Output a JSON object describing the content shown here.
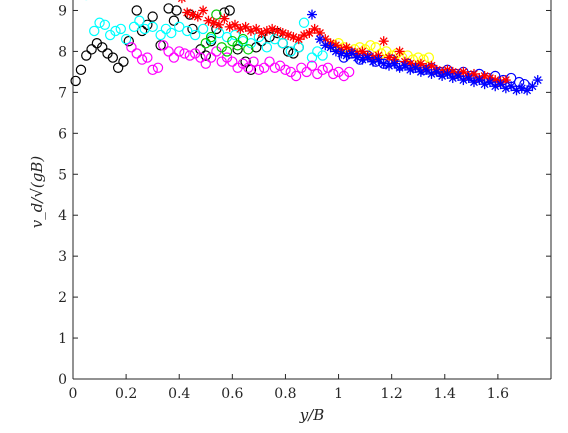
{
  "chart_data": {
    "type": "scatter",
    "title": "",
    "xlabel": "y/B",
    "ylabel": "v_d/√(gB)",
    "xlim": [
      0,
      1.8
    ],
    "ylim": [
      0,
      9.5
    ],
    "x_ticks": [
      "0",
      "0.2",
      "0.4",
      "0.6",
      "0.8",
      "1",
      "1.2",
      "1.4",
      "1.6"
    ],
    "y_ticks": [
      "0",
      "1",
      "2",
      "3",
      "4",
      "5",
      "6",
      "7",
      "8",
      "9"
    ],
    "grid": false,
    "legend": "none",
    "series": [
      {
        "color": "#000000",
        "marker": "circle",
        "points": [
          [
            0.01,
            7.28
          ],
          [
            0.03,
            7.55
          ],
          [
            0.05,
            7.9
          ],
          [
            0.07,
            8.05
          ],
          [
            0.09,
            8.2
          ],
          [
            0.11,
            8.1
          ],
          [
            0.13,
            7.95
          ],
          [
            0.15,
            7.85
          ],
          [
            0.17,
            7.6
          ],
          [
            0.19,
            7.75
          ],
          [
            0.21,
            8.25
          ],
          [
            0.24,
            9.0
          ],
          [
            0.26,
            8.5
          ],
          [
            0.28,
            8.65
          ],
          [
            0.3,
            8.85
          ],
          [
            0.33,
            8.15
          ],
          [
            0.36,
            9.05
          ],
          [
            0.38,
            8.75
          ],
          [
            0.39,
            9.0
          ],
          [
            0.42,
            9.38
          ],
          [
            0.44,
            8.9
          ],
          [
            0.45,
            8.55
          ],
          [
            0.48,
            8.05
          ],
          [
            0.5,
            7.9
          ],
          [
            0.52,
            8.25
          ],
          [
            0.54,
            8.55
          ],
          [
            0.57,
            8.95
          ],
          [
            0.59,
            9.0
          ],
          [
            0.62,
            8.05
          ],
          [
            0.65,
            7.75
          ],
          [
            0.67,
            7.55
          ],
          [
            0.69,
            8.1
          ],
          [
            0.71,
            8.25
          ],
          [
            0.74,
            8.35
          ],
          [
            0.77,
            8.45
          ],
          [
            0.79,
            8.2
          ],
          [
            0.81,
            8.0
          ],
          [
            0.83,
            7.95
          ],
          [
            0.85,
            8.1
          ]
        ]
      },
      {
        "color": "#00ffff",
        "marker": "circle",
        "points": [
          [
            0.05,
            9.38
          ],
          [
            0.08,
            8.5
          ],
          [
            0.1,
            8.7
          ],
          [
            0.12,
            8.65
          ],
          [
            0.14,
            8.4
          ],
          [
            0.16,
            8.5
          ],
          [
            0.18,
            8.55
          ],
          [
            0.2,
            8.3
          ],
          [
            0.23,
            8.6
          ],
          [
            0.25,
            8.75
          ],
          [
            0.27,
            8.55
          ],
          [
            0.3,
            8.6
          ],
          [
            0.33,
            8.4
          ],
          [
            0.35,
            8.55
          ],
          [
            0.37,
            8.45
          ],
          [
            0.4,
            8.6
          ],
          [
            0.43,
            8.5
          ],
          [
            0.46,
            8.4
          ],
          [
            0.49,
            8.55
          ],
          [
            0.52,
            8.3
          ],
          [
            0.55,
            8.45
          ],
          [
            0.58,
            8.35
          ],
          [
            0.61,
            8.4
          ],
          [
            0.64,
            8.25
          ],
          [
            0.67,
            8.2
          ],
          [
            0.7,
            8.35
          ],
          [
            0.73,
            8.1
          ],
          [
            0.76,
            8.3
          ],
          [
            0.79,
            8.2
          ],
          [
            0.82,
            8.0
          ],
          [
            0.85,
            8.1
          ],
          [
            0.87,
            8.7
          ],
          [
            0.9,
            7.85
          ],
          [
            0.92,
            8.0
          ],
          [
            0.94,
            7.9
          ]
        ]
      },
      {
        "color": "#ff00ff",
        "marker": "circle",
        "points": [
          [
            0.22,
            8.1
          ],
          [
            0.24,
            7.95
          ],
          [
            0.26,
            7.8
          ],
          [
            0.28,
            7.85
          ],
          [
            0.3,
            7.55
          ],
          [
            0.32,
            7.6
          ],
          [
            0.34,
            8.15
          ],
          [
            0.36,
            8.0
          ],
          [
            0.38,
            7.85
          ],
          [
            0.4,
            8.0
          ],
          [
            0.42,
            7.95
          ],
          [
            0.44,
            7.9
          ],
          [
            0.46,
            7.95
          ],
          [
            0.48,
            7.85
          ],
          [
            0.5,
            7.7
          ],
          [
            0.52,
            7.85
          ],
          [
            0.54,
            8.0
          ],
          [
            0.56,
            7.75
          ],
          [
            0.58,
            7.85
          ],
          [
            0.6,
            7.75
          ],
          [
            0.62,
            7.6
          ],
          [
            0.64,
            7.7
          ],
          [
            0.66,
            7.6
          ],
          [
            0.68,
            7.75
          ],
          [
            0.7,
            7.55
          ],
          [
            0.72,
            7.6
          ],
          [
            0.74,
            7.75
          ],
          [
            0.76,
            7.6
          ],
          [
            0.78,
            7.65
          ],
          [
            0.8,
            7.55
          ],
          [
            0.82,
            7.5
          ],
          [
            0.84,
            7.4
          ],
          [
            0.86,
            7.6
          ],
          [
            0.88,
            7.5
          ],
          [
            0.9,
            7.65
          ],
          [
            0.92,
            7.45
          ],
          [
            0.94,
            7.55
          ],
          [
            0.96,
            7.6
          ],
          [
            0.98,
            7.45
          ],
          [
            1.0,
            7.5
          ],
          [
            1.02,
            7.4
          ],
          [
            1.04,
            7.5
          ]
        ]
      },
      {
        "color": "#00cc00",
        "marker": "circle",
        "points": [
          [
            0.5,
            8.2
          ],
          [
            0.52,
            8.35
          ],
          [
            0.54,
            8.9
          ],
          [
            0.56,
            8.1
          ],
          [
            0.58,
            8.0
          ],
          [
            0.6,
            8.25
          ],
          [
            0.62,
            8.15
          ],
          [
            0.64,
            8.3
          ],
          [
            0.66,
            8.05
          ]
        ]
      },
      {
        "color": "#ffff00",
        "marker": "circle",
        "points": [
          [
            0.98,
            8.15
          ],
          [
            1.0,
            8.2
          ],
          [
            1.02,
            8.1
          ],
          [
            1.04,
            8.0
          ],
          [
            1.06,
            8.05
          ],
          [
            1.08,
            8.1
          ],
          [
            1.1,
            8.05
          ],
          [
            1.12,
            8.15
          ],
          [
            1.14,
            8.1
          ],
          [
            1.16,
            7.95
          ],
          [
            1.18,
            8.0
          ],
          [
            1.2,
            7.9
          ],
          [
            1.22,
            7.95
          ],
          [
            1.24,
            7.85
          ],
          [
            1.26,
            7.9
          ],
          [
            1.28,
            7.8
          ],
          [
            1.3,
            7.85
          ],
          [
            1.32,
            7.8
          ],
          [
            1.34,
            7.85
          ]
        ]
      },
      {
        "color": "#0000ff",
        "marker": "circle",
        "points": [
          [
            1.02,
            7.85
          ],
          [
            1.05,
            7.95
          ],
          [
            1.08,
            7.8
          ],
          [
            1.11,
            7.9
          ],
          [
            1.14,
            7.75
          ],
          [
            1.17,
            7.7
          ],
          [
            1.2,
            7.8
          ],
          [
            1.23,
            7.65
          ],
          [
            1.26,
            7.7
          ],
          [
            1.29,
            7.6
          ],
          [
            1.32,
            7.55
          ],
          [
            1.35,
            7.6
          ],
          [
            1.38,
            7.5
          ],
          [
            1.41,
            7.55
          ],
          [
            1.44,
            7.45
          ],
          [
            1.47,
            7.5
          ],
          [
            1.5,
            7.4
          ],
          [
            1.53,
            7.45
          ],
          [
            1.56,
            7.35
          ],
          [
            1.59,
            7.4
          ],
          [
            1.62,
            7.3
          ],
          [
            1.65,
            7.35
          ],
          [
            1.68,
            7.25
          ],
          [
            1.7,
            7.2
          ]
        ]
      },
      {
        "color": "#ff0000",
        "marker": "asterisk",
        "points": [
          [
            0.41,
            9.3
          ],
          [
            0.43,
            8.95
          ],
          [
            0.45,
            8.9
          ],
          [
            0.47,
            8.85
          ],
          [
            0.49,
            9.0
          ],
          [
            0.51,
            8.75
          ],
          [
            0.53,
            8.7
          ],
          [
            0.55,
            8.65
          ],
          [
            0.57,
            8.8
          ],
          [
            0.59,
            8.6
          ],
          [
            0.61,
            8.65
          ],
          [
            0.63,
            8.55
          ],
          [
            0.65,
            8.6
          ],
          [
            0.67,
            8.5
          ],
          [
            0.69,
            8.55
          ],
          [
            0.71,
            8.45
          ],
          [
            0.73,
            8.5
          ],
          [
            0.75,
            8.55
          ],
          [
            0.77,
            8.5
          ],
          [
            0.79,
            8.45
          ],
          [
            0.81,
            8.4
          ],
          [
            0.83,
            8.35
          ],
          [
            0.85,
            8.3
          ],
          [
            0.87,
            8.4
          ],
          [
            0.89,
            8.45
          ],
          [
            0.91,
            8.55
          ],
          [
            0.93,
            8.45
          ],
          [
            0.95,
            8.3
          ],
          [
            0.97,
            8.2
          ],
          [
            0.99,
            8.15
          ],
          [
            1.01,
            8.05
          ],
          [
            1.03,
            8.1
          ],
          [
            1.05,
            8.0
          ],
          [
            1.07,
            7.95
          ],
          [
            1.09,
            8.0
          ],
          [
            1.11,
            7.9
          ],
          [
            1.13,
            7.85
          ],
          [
            1.15,
            7.9
          ],
          [
            1.17,
            8.25
          ],
          [
            1.19,
            7.85
          ],
          [
            1.21,
            7.8
          ],
          [
            1.23,
            8.0
          ],
          [
            1.25,
            7.75
          ],
          [
            1.27,
            7.7
          ],
          [
            1.29,
            7.65
          ],
          [
            1.31,
            7.7
          ],
          [
            1.33,
            7.6
          ],
          [
            1.35,
            7.65
          ],
          [
            1.37,
            7.55
          ],
          [
            1.39,
            7.5
          ],
          [
            1.41,
            7.55
          ],
          [
            1.43,
            7.5
          ],
          [
            1.45,
            7.45
          ],
          [
            1.47,
            7.5
          ],
          [
            1.49,
            7.4
          ],
          [
            1.51,
            7.45
          ],
          [
            1.53,
            7.35
          ],
          [
            1.55,
            7.4
          ],
          [
            1.57,
            7.35
          ],
          [
            1.59,
            7.3
          ],
          [
            1.61,
            7.25
          ],
          [
            1.63,
            7.3
          ]
        ]
      },
      {
        "color": "#0000ff",
        "marker": "asterisk",
        "points": [
          [
            0.9,
            8.9
          ],
          [
            0.93,
            8.3
          ],
          [
            0.95,
            8.15
          ],
          [
            0.97,
            8.1
          ],
          [
            0.99,
            8.0
          ],
          [
            1.01,
            7.95
          ],
          [
            1.03,
            7.9
          ],
          [
            1.05,
            7.95
          ],
          [
            1.07,
            7.85
          ],
          [
            1.09,
            7.8
          ],
          [
            1.11,
            7.85
          ],
          [
            1.13,
            7.75
          ],
          [
            1.15,
            7.8
          ],
          [
            1.17,
            7.7
          ],
          [
            1.19,
            7.65
          ],
          [
            1.21,
            7.7
          ],
          [
            1.23,
            7.6
          ],
          [
            1.25,
            7.65
          ],
          [
            1.27,
            7.55
          ],
          [
            1.29,
            7.6
          ],
          [
            1.31,
            7.5
          ],
          [
            1.33,
            7.55
          ],
          [
            1.35,
            7.45
          ],
          [
            1.37,
            7.5
          ],
          [
            1.39,
            7.4
          ],
          [
            1.41,
            7.45
          ],
          [
            1.43,
            7.35
          ],
          [
            1.45,
            7.4
          ],
          [
            1.47,
            7.3
          ],
          [
            1.49,
            7.35
          ],
          [
            1.51,
            7.25
          ],
          [
            1.53,
            7.3
          ],
          [
            1.55,
            7.2
          ],
          [
            1.57,
            7.25
          ],
          [
            1.59,
            7.15
          ],
          [
            1.61,
            7.2
          ],
          [
            1.63,
            7.1
          ],
          [
            1.65,
            7.15
          ],
          [
            1.67,
            7.05
          ],
          [
            1.69,
            7.1
          ],
          [
            1.71,
            7.05
          ],
          [
            1.73,
            7.15
          ],
          [
            1.75,
            7.3
          ]
        ]
      }
    ]
  }
}
